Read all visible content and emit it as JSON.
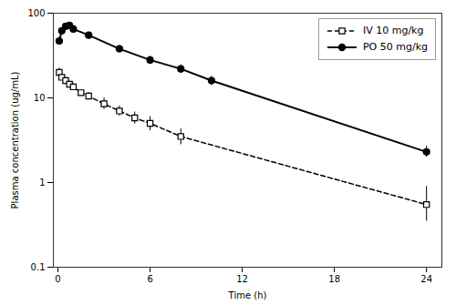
{
  "chart_data": {
    "type": "line",
    "xlabel": "Time (h)",
    "ylabel": "Plasma concentration (ug/mL)",
    "series": [
      {
        "name": "IV 10 mg/kg",
        "color": "#000000",
        "marker": "square",
        "line_style": "dashed",
        "x": [
          0.083,
          0.25,
          0.5,
          0.75,
          1.0,
          1.5,
          2.0,
          3.0,
          4.0,
          5.0,
          6.0,
          8.0,
          24.0
        ],
        "values": [
          20.0,
          17.5,
          16.0,
          14.5,
          13.5,
          11.5,
          10.5,
          8.5,
          7.0,
          5.8,
          5.0,
          3.5,
          0.55
        ],
        "yerr_lower": [
          2.0,
          1.5,
          1.5,
          1.2,
          1.2,
          1.0,
          1.0,
          1.2,
          0.9,
          0.9,
          0.9,
          0.7,
          0.2
        ],
        "yerr_upper": [
          2.5,
          1.5,
          1.5,
          1.2,
          1.2,
          1.0,
          1.0,
          1.5,
          1.0,
          1.0,
          1.0,
          0.8,
          0.35
        ]
      },
      {
        "name": "PO 50 mg/kg",
        "color": "#000000",
        "marker": "circle",
        "line_style": "solid",
        "x": [
          0.083,
          0.25,
          0.5,
          0.75,
          1.0,
          2.0,
          4.0,
          6.0,
          8.0,
          10.0,
          24.0
        ],
        "values": [
          47.0,
          62.0,
          70.0,
          72.0,
          65.0,
          55.0,
          38.0,
          28.0,
          22.0,
          16.0,
          2.3
        ],
        "yerr_lower": [
          4.0,
          5.0,
          5.0,
          5.0,
          4.5,
          4.0,
          3.5,
          3.0,
          2.5,
          2.0,
          0.3
        ],
        "yerr_upper": [
          4.0,
          5.0,
          5.0,
          5.0,
          4.5,
          4.0,
          3.5,
          3.0,
          2.5,
          2.0,
          0.4
        ]
      }
    ],
    "xlim": [
      -0.3,
      25
    ],
    "ylim": [
      0.1,
      100
    ],
    "xticks": [
      0,
      6,
      12,
      18,
      24
    ],
    "yticks": [
      0.1,
      1,
      10,
      100
    ],
    "log": "y",
    "grid": false,
    "legend": "upper right"
  }
}
